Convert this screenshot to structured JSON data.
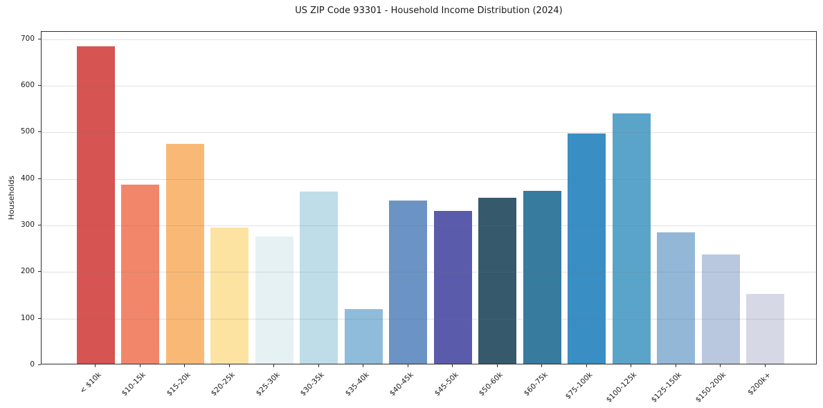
{
  "chart_data": {
    "type": "bar",
    "title": "US ZIP Code 93301 - Household Income Distribution (2024)",
    "xlabel": "",
    "ylabel": "Households",
    "categories": [
      "< $10k",
      "$10-15k",
      "$15-20k",
      "$20-25k",
      "$25-30k",
      "$30-35k",
      "$35-40k",
      "$40-45k",
      "$45-50k",
      "$50-60k",
      "$60-75k",
      "$75-100k",
      "$100-125k",
      "$125-150k",
      "$150-200k",
      "$200k+"
    ],
    "values": [
      682,
      385,
      472,
      293,
      274,
      370,
      118,
      351,
      328,
      356,
      372,
      495,
      538,
      282,
      235,
      150
    ],
    "bar_colors": [
      "#d65451",
      "#f2866a",
      "#f9b976",
      "#fce3a1",
      "#e6f1f4",
      "#bedde9",
      "#8fbcda",
      "#6b93c4",
      "#5a5cab",
      "#36596c",
      "#377b9e",
      "#398ec3",
      "#5ba4c9",
      "#92b7d7",
      "#b9c8df",
      "#d6d8e5"
    ],
    "yticks": [
      0,
      100,
      200,
      300,
      400,
      500,
      600,
      700
    ],
    "ylim": [
      0,
      716
    ],
    "grid": "horizontal-only",
    "legend_position": "none",
    "plot_background": "#ffffff",
    "axis_color": "#2b2b2b"
  }
}
